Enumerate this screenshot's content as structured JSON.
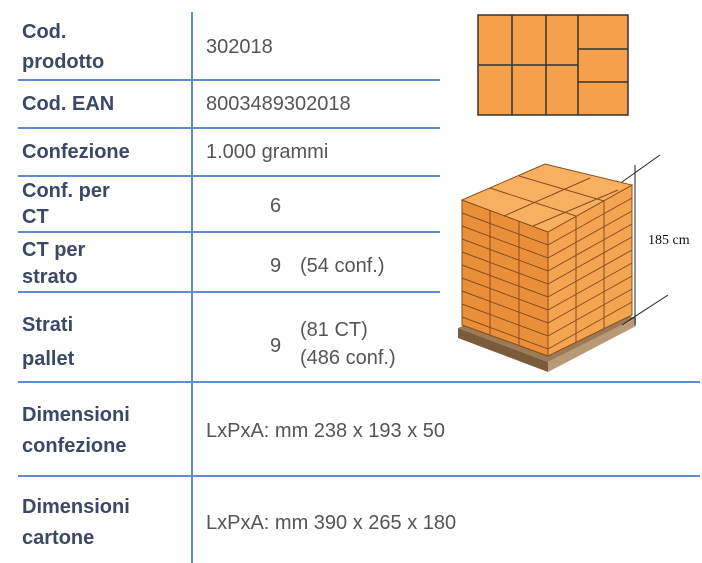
{
  "table": {
    "rows": [
      {
        "label": [
          "Cod.",
          "prodotto"
        ],
        "value": "302018"
      },
      {
        "label": [
          "Cod. EAN"
        ],
        "value": "8003489302018"
      },
      {
        "label": [
          "Confezione"
        ],
        "value": "1.000 grammi"
      },
      {
        "label": [
          "Conf. per",
          "CT"
        ],
        "value": "6"
      },
      {
        "label": [
          "CT per",
          "strato"
        ],
        "value": "9",
        "notes": [
          "(54 conf.)"
        ]
      },
      {
        "label": [
          "Strati",
          "pallet"
        ],
        "value": "9",
        "notes": [
          "(81 CT)",
          "(486 conf.)"
        ]
      },
      {
        "label": [
          "Dimensioni",
          "confezione"
        ],
        "value": "LxPxA: mm 238 x 193 x 50"
      },
      {
        "label": [
          "Dimensioni",
          "cartone"
        ],
        "value": "LxPxA: mm 390 x 265 x 180"
      }
    ]
  },
  "pallet_image": {
    "height_label": "185 cm"
  }
}
